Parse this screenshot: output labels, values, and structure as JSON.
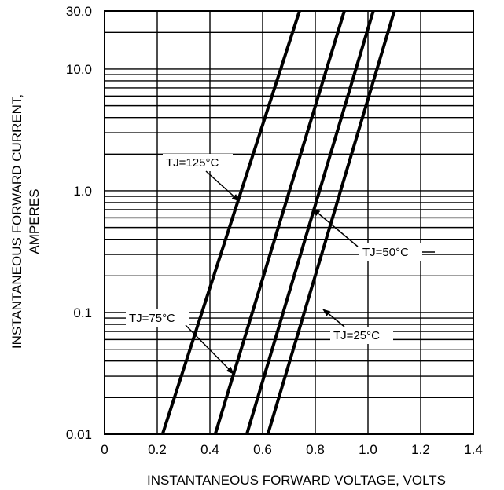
{
  "chart_data": {
    "type": "line",
    "xlabel": "INSTANTANEOUS FORWARD VOLTAGE, VOLTS",
    "ylabel": [
      "INSTANTANEOUS FORWARD CURRENT,",
      "AMPERES"
    ],
    "xlim": [
      0,
      1.4
    ],
    "ylim": [
      0.01,
      30.0
    ],
    "yscale": "log",
    "grid": true,
    "x_ticks": [
      "0",
      "0.2",
      "0.4",
      "0.6",
      "0.8",
      "1.0",
      "1.2",
      "1.4"
    ],
    "y_ticks": [
      "0.01",
      "0.1",
      "1.0",
      "10.0",
      "30.0"
    ],
    "series": [
      {
        "name": "TJ=125°C",
        "x": [
          0.22,
          0.74
        ],
        "y": [
          0.01,
          30.0
        ]
      },
      {
        "name": "TJ=75°C",
        "x": [
          0.42,
          0.91
        ],
        "y": [
          0.01,
          30.0
        ]
      },
      {
        "name": "TJ=50°C",
        "x": [
          0.54,
          1.02
        ],
        "y": [
          0.01,
          30.0
        ]
      },
      {
        "name": "TJ=25°C",
        "x": [
          0.62,
          1.1
        ],
        "y": [
          0.01,
          30.0
        ]
      }
    ],
    "annotations": [
      {
        "text": "TJ=125°C",
        "series": 0
      },
      {
        "text": "TJ=75°C",
        "series": 1
      },
      {
        "text": "TJ=50°C",
        "series": 2
      },
      {
        "text": "TJ=25°C",
        "series": 3
      }
    ]
  }
}
